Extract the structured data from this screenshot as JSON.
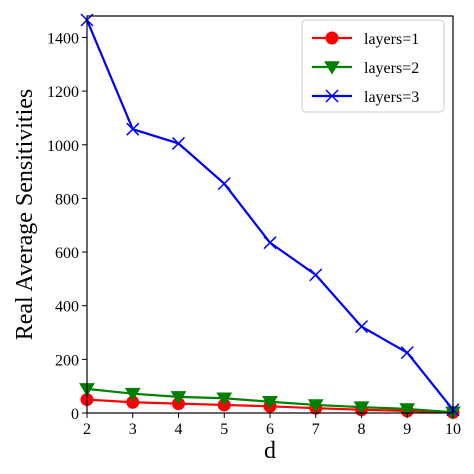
{
  "chart_data": {
    "type": "line",
    "title": "",
    "xlabel": "d",
    "ylabel": "Real Average Sensitivities",
    "x": [
      2,
      3,
      4,
      5,
      6,
      7,
      8,
      9,
      10
    ],
    "xlim": [
      2,
      10
    ],
    "ylim": [
      0,
      1480
    ],
    "xticks": [
      2,
      3,
      4,
      5,
      6,
      7,
      8,
      9,
      10
    ],
    "yticks": [
      0,
      200,
      400,
      600,
      800,
      1000,
      1200,
      1400
    ],
    "grid": false,
    "legend_position": "top-right",
    "series": [
      {
        "name": "layers=1",
        "color": "#ff0000",
        "marker": "circle",
        "values": [
          50,
          40,
          35,
          30,
          25,
          18,
          12,
          8,
          2
        ]
      },
      {
        "name": "layers=2",
        "color": "#008000",
        "marker": "triangle-down",
        "values": [
          90,
          72,
          60,
          55,
          42,
          30,
          22,
          15,
          3
        ]
      },
      {
        "name": "layers=3",
        "color": "#0000ff",
        "marker": "x",
        "values": [
          1465,
          1058,
          1005,
          855,
          635,
          515,
          322,
          225,
          12
        ]
      }
    ]
  }
}
